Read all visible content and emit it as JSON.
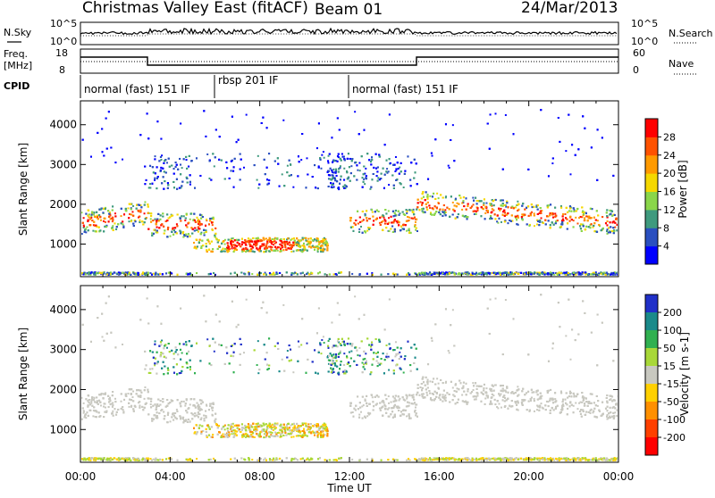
{
  "header": {
    "title": "Christmas Valley East (fitACF)",
    "beam": "Beam 01",
    "date": "24/Mar/2013"
  },
  "noise_panel": {
    "left_label": "N.Sky",
    "right_label": "N.Search",
    "left_ticks": [
      "10^5",
      "10^0"
    ],
    "right_ticks": [
      "10^5",
      "10^0"
    ]
  },
  "freq_panel": {
    "left_label_top": "Freq.",
    "left_label_bottom": "[MHz]",
    "right_label": "Nave",
    "left_ticks": [
      "18",
      "8"
    ],
    "right_ticks": [
      "60",
      "0"
    ]
  },
  "cpid_panel": {
    "label": "CPID",
    "segments": [
      {
        "label": "normal (fast) 151 IF",
        "start_hour": 0,
        "end_hour": 6
      },
      {
        "label": "rbsp 201 IF",
        "start_hour": 6,
        "end_hour": 12
      },
      {
        "label": "normal (fast) 151 IF",
        "start_hour": 12,
        "end_hour": 24
      }
    ]
  },
  "chart_data": [
    {
      "type": "heatmap",
      "name": "power",
      "ylabel": "Slant Range [km]",
      "y_ticks": [
        1000,
        2000,
        3000,
        4000
      ],
      "ylim": [
        180,
        4600
      ],
      "colorbar_label": "Power [dB]",
      "colorbar_ticks": [
        "4",
        "8",
        "12",
        "16",
        "20",
        "24",
        "28"
      ],
      "colorbar_colors": [
        "#0000ff",
        "#2a4fc0",
        "#3f9a7e",
        "#8ad64a",
        "#f5d800",
        "#ff9a00",
        "#ff5200",
        "#ff0000"
      ]
    },
    {
      "type": "heatmap",
      "name": "velocity",
      "ylabel": "Slant Range [km]",
      "y_ticks": [
        1000,
        2000,
        3000,
        4000
      ],
      "ylim": [
        180,
        4600
      ],
      "colorbar_label": "Velocity [m s-1]",
      "colorbar_ticks": [
        "200",
        "100",
        "50",
        "15",
        "-15",
        "-50",
        "-100",
        "-200"
      ],
      "colorbar_colors": [
        "#2030c8",
        "#1a8a8a",
        "#30b050",
        "#a8d838",
        "#c8c8c0",
        "#ffd000",
        "#ff9000",
        "#ff4000",
        "#ff0000"
      ]
    }
  ],
  "x_axis": {
    "label": "Time UT",
    "ticks": [
      "00:00",
      "04:00",
      "08:00",
      "12:00",
      "16:00",
      "20:00",
      "00:00"
    ]
  }
}
